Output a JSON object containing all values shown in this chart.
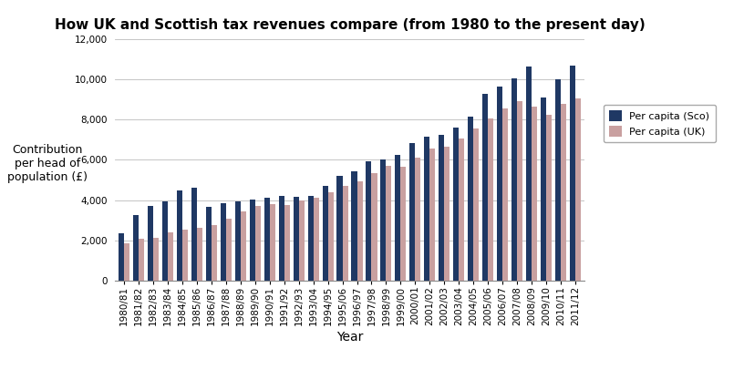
{
  "title": "How UK and Scottish tax revenues compare (from 1980 to the present day)",
  "xlabel": "Year",
  "ylabel": "Contribution\nper head of\npopulation (£)",
  "categories": [
    "1980/81",
    "1981/82",
    "1982/83",
    "1983/84",
    "1984/85",
    "1985/86",
    "1986/87",
    "1987/88",
    "1988/89",
    "1989/90",
    "1990/91",
    "1991/92",
    "1992/93",
    "1993/04",
    "1994/95",
    "1995/06",
    "1996/97",
    "1997/98",
    "1998/99",
    "1999/00",
    "2000/01",
    "2001/02",
    "2002/03",
    "2003/04",
    "2004/05",
    "2005/06",
    "2006/07",
    "2007/08",
    "2008/09",
    "2009/10",
    "2010/11",
    "2011/12"
  ],
  "sco_values": [
    2370,
    3250,
    3700,
    3950,
    4500,
    4600,
    3650,
    3850,
    3950,
    4050,
    4100,
    4200,
    4150,
    4200,
    4700,
    5200,
    5450,
    5950,
    6000,
    6250,
    6850,
    7150,
    7250,
    7600,
    8150,
    9300,
    9650,
    10050,
    10650,
    9100,
    10000,
    10700
  ],
  "uk_values": [
    1850,
    2100,
    2150,
    2400,
    2550,
    2650,
    2750,
    3100,
    3450,
    3700,
    3800,
    3750,
    4000,
    4100,
    4400,
    4700,
    4950,
    5350,
    5700,
    5650,
    6100,
    6550,
    6650,
    7050,
    7550,
    8050,
    8550,
    8900,
    8650,
    8250,
    8800,
    9050
  ],
  "sco_color": "#1f3864",
  "uk_color": "#c9a0a0",
  "ylim": [
    0,
    12000
  ],
  "yticks": [
    0,
    2000,
    4000,
    6000,
    8000,
    10000,
    12000
  ],
  "legend_labels": [
    "Per capita (Sco)",
    "Per capita (UK)"
  ],
  "background_color": "#ffffff",
  "grid_color": "#bbbbbb",
  "title_fontsize": 11,
  "axis_label_fontsize": 9,
  "tick_fontsize": 7.5
}
